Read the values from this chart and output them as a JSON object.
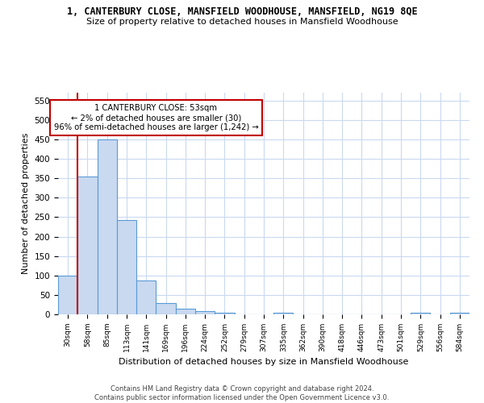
{
  "title1": "1, CANTERBURY CLOSE, MANSFIELD WOODHOUSE, MANSFIELD, NG19 8QE",
  "title2": "Size of property relative to detached houses in Mansfield Woodhouse",
  "xlabel": "Distribution of detached houses by size in Mansfield Woodhouse",
  "ylabel": "Number of detached properties",
  "bin_labels": [
    "30sqm",
    "58sqm",
    "85sqm",
    "113sqm",
    "141sqm",
    "169sqm",
    "196sqm",
    "224sqm",
    "252sqm",
    "279sqm",
    "307sqm",
    "335sqm",
    "362sqm",
    "390sqm",
    "418sqm",
    "446sqm",
    "473sqm",
    "501sqm",
    "529sqm",
    "556sqm",
    "584sqm"
  ],
  "bar_heights": [
    100,
    355,
    450,
    242,
    87,
    30,
    15,
    9,
    5,
    0,
    0,
    5,
    0,
    0,
    0,
    0,
    0,
    0,
    5,
    0,
    5
  ],
  "bar_color": "#c9d9f0",
  "bar_edge_color": "#5b9bd5",
  "vline_color": "#c00000",
  "annotation_title": "1 CANTERBURY CLOSE: 53sqm",
  "annotation_line1": "← 2% of detached houses are smaller (30)",
  "annotation_line2": "96% of semi-detached houses are larger (1,242) →",
  "annotation_box_edge": "#c00000",
  "yticks": [
    0,
    50,
    100,
    150,
    200,
    250,
    300,
    350,
    400,
    450,
    500,
    550
  ],
  "footer1": "Contains HM Land Registry data © Crown copyright and database right 2024.",
  "footer2": "Contains public sector information licensed under the Open Government Licence v3.0.",
  "bg_color": "#ffffff",
  "grid_color": "#c9d9f0"
}
